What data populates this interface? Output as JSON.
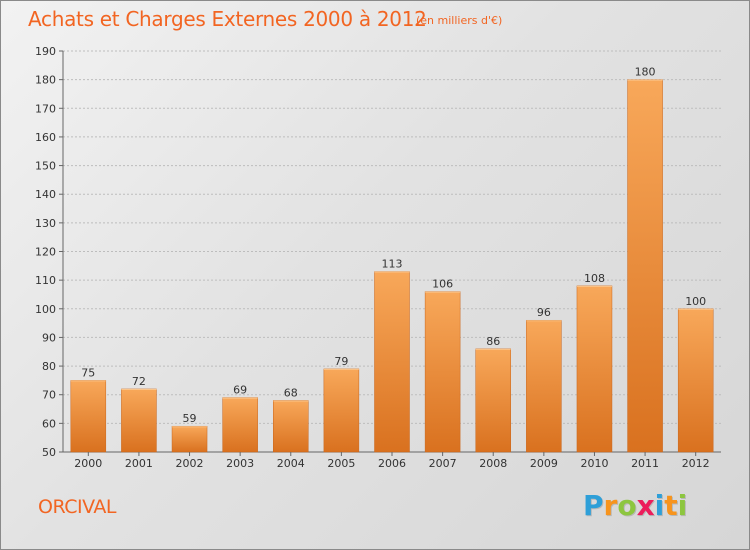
{
  "title": "Achats et Charges Externes 2000 à 2012",
  "subtitle": "(en milliers d'€)",
  "city": "ORCIVAL",
  "logo": {
    "text": "Proxiti",
    "letters": [
      {
        "char": "P",
        "color": "#2e9fd8"
      },
      {
        "char": "r",
        "color": "#f7941d"
      },
      {
        "char": "o",
        "color": "#8dc63f"
      },
      {
        "char": "x",
        "color": "#ec1c5b"
      },
      {
        "char": "i",
        "color": "#2e9fd8"
      },
      {
        "char": "t",
        "color": "#f7941d"
      },
      {
        "char": "i",
        "color": "#8dc63f"
      }
    ]
  },
  "colors": {
    "accent": "#f26522",
    "bar_light": "#f8a85a",
    "bar_dark": "#d9711f",
    "axis": "#666666",
    "grid": "#bdbdbd"
  },
  "chart_data": {
    "type": "bar",
    "categories": [
      "2000",
      "2001",
      "2002",
      "2003",
      "2004",
      "2005",
      "2006",
      "2007",
      "2008",
      "2009",
      "2010",
      "2011",
      "2012"
    ],
    "values": [
      75,
      72,
      59,
      69,
      68,
      79,
      113,
      106,
      86,
      96,
      108,
      180,
      100
    ],
    "title": "Achats et Charges Externes 2000 à 2012",
    "xlabel": "",
    "ylabel": "",
    "ylim": [
      50,
      190
    ],
    "yticks": [
      50,
      60,
      70,
      80,
      90,
      100,
      110,
      120,
      130,
      140,
      150,
      160,
      170,
      180,
      190
    ],
    "grid": true,
    "legend": "none"
  }
}
